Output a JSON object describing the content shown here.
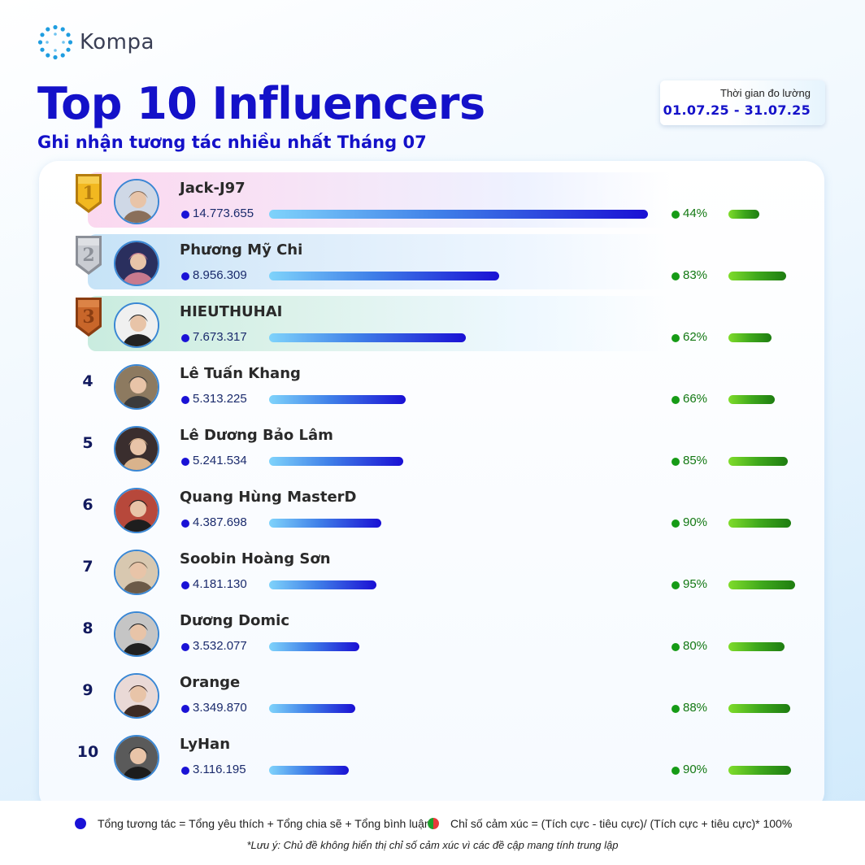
{
  "brand": {
    "name": "Kompa",
    "icon": "kompa-logo-icon"
  },
  "header": {
    "title": "Top 10 Influencers",
    "subtitle": "Ghi nhận tương tác nhiều nhất Tháng 07",
    "period_label": "Thời gian đo lường",
    "period_range": "01.07.25  -  31.07.25"
  },
  "colors": {
    "accent": "#1411c9",
    "total_dot": "#1a12d6",
    "sentiment_green": "#169b16",
    "gold": "#f2b820",
    "silver": "#c9ccd2",
    "bronze": "#c8662a"
  },
  "chart_data": {
    "type": "bar",
    "categories": [
      "Jack-J97",
      "Phương Mỹ Chi",
      "HIEUTHUHAI",
      "Lê Tuấn Khang",
      "Lê Dương Bảo Lâm",
      "Quang Hùng MasterD",
      "Soobin Hoàng Sơn",
      "Dương Domic",
      "Orange",
      "LyHan"
    ],
    "series": [
      {
        "name": "Tổng tương tác",
        "values": [
          14773655,
          8956309,
          7673317,
          5313225,
          5241534,
          4387698,
          4181130,
          3532077,
          3349870,
          3116195
        ]
      },
      {
        "name": "Chỉ số cảm xúc",
        "values": [
          44,
          83,
          62,
          66,
          85,
          90,
          95,
          80,
          88,
          90
        ]
      }
    ]
  },
  "rows": [
    {
      "rank": "1",
      "name": "Jack-J97",
      "total": "14.773.655",
      "sentiment": "44%"
    },
    {
      "rank": "2",
      "name": "Phương Mỹ Chi",
      "total": "8.956.309",
      "sentiment": "83%"
    },
    {
      "rank": "3",
      "name": "HIEUTHUHAI",
      "total": "7.673.317",
      "sentiment": "62%"
    },
    {
      "rank": "4",
      "name": "Lê Tuấn Khang",
      "total": "5.313.225",
      "sentiment": "66%"
    },
    {
      "rank": "5",
      "name": "Lê Dương Bảo Lâm",
      "total": "5.241.534",
      "sentiment": "85%"
    },
    {
      "rank": "6",
      "name": "Quang Hùng MasterD",
      "total": "4.387.698",
      "sentiment": "90%"
    },
    {
      "rank": "7",
      "name": "Soobin Hoàng Sơn",
      "total": "4.181.130",
      "sentiment": "95%"
    },
    {
      "rank": "8",
      "name": "Dương Domic",
      "total": "3.532.077",
      "sentiment": "80%"
    },
    {
      "rank": "9",
      "name": "Orange",
      "total": "3.349.870",
      "sentiment": "88%"
    },
    {
      "rank": "10",
      "name": "LyHan",
      "total": "3.116.195",
      "sentiment": "90%"
    }
  ],
  "legend": {
    "total_text": "Tổng tương tác = Tổng yêu thích + Tổng chia sẽ + Tổng bình luận",
    "sentiment_text": "Chỉ số cảm xúc = (Tích cực - tiêu cực)/ (Tích cực + tiêu cực)* 100%"
  },
  "footnote": "*Lưu ý: Chủ đề không hiển thị chỉ số cảm xúc vì các đề cập mang tính trung lập"
}
